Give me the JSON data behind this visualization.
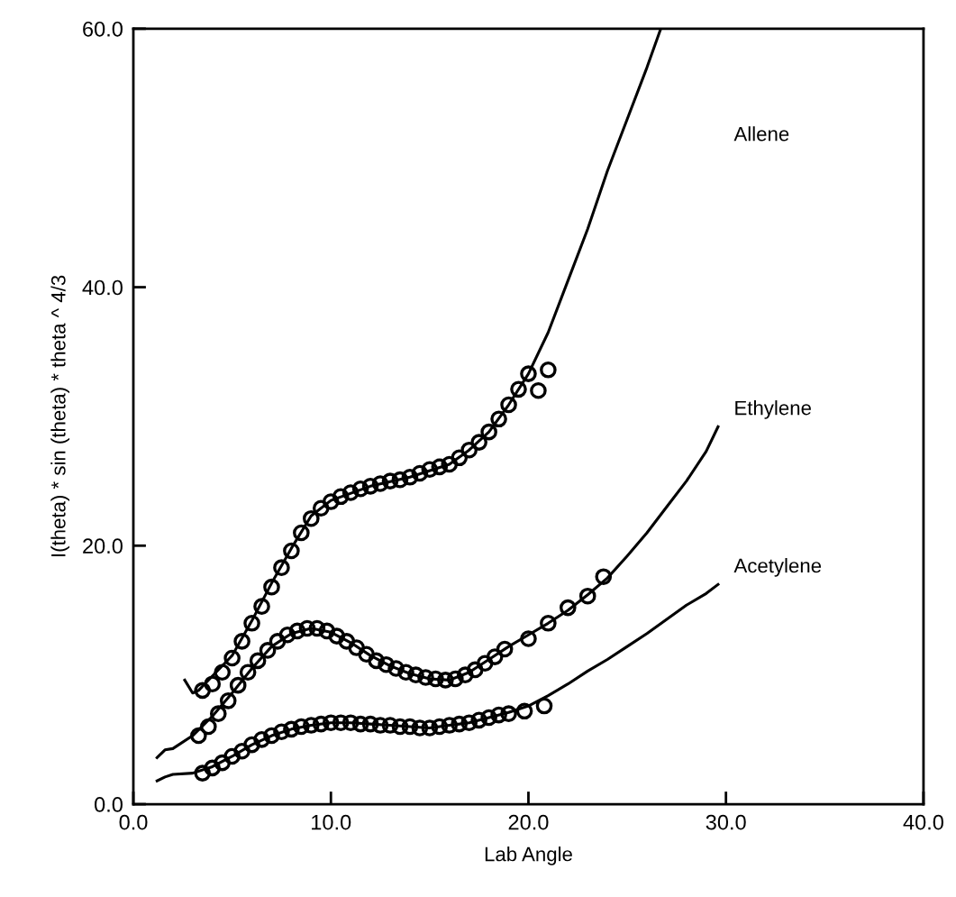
{
  "chart_data": {
    "type": "line",
    "xlabel": "Lab Angle",
    "ylabel": "I(theta) * sin (theta) * theta ^ 4/3",
    "xlim": [
      0,
      40
    ],
    "ylim": [
      0,
      60
    ],
    "xticks": [
      {
        "value": 0,
        "label": "0.0"
      },
      {
        "value": 10,
        "label": "10.0"
      },
      {
        "value": 20,
        "label": "20.0"
      },
      {
        "value": 30,
        "label": "30.0"
      },
      {
        "value": 40,
        "label": "40.0"
      }
    ],
    "yticks": [
      {
        "value": 0,
        "label": "0.0"
      },
      {
        "value": 20,
        "label": "20.0"
      },
      {
        "value": 40,
        "label": "40.0"
      },
      {
        "value": 60,
        "label": "60.0"
      }
    ],
    "grid": false,
    "legend": false,
    "series": [
      {
        "name": "Allene",
        "color": "#000000",
        "marker": "none",
        "x": [
          2.6,
          3.0,
          3.3,
          5,
          6,
          7,
          8,
          9,
          10,
          12,
          14,
          16,
          17,
          18,
          19,
          20,
          21,
          22,
          23,
          24,
          25,
          26,
          26.7
        ],
        "values": [
          9.6,
          8.6,
          8.8,
          11.5,
          14.2,
          17.1,
          19.8,
          22.3,
          23.5,
          24.6,
          25.3,
          26.3,
          27.4,
          28.8,
          30.9,
          33.3,
          36.5,
          40.5,
          44.5,
          49,
          53,
          57,
          60
        ]
      },
      {
        "name": "Ethylene",
        "color": "#000000",
        "marker": "none",
        "x": [
          1.2,
          1.6,
          2,
          3,
          4,
          5,
          6,
          7,
          8,
          9,
          10,
          11,
          12,
          13,
          14,
          15,
          16,
          17,
          18,
          19,
          20,
          21,
          22,
          23,
          24,
          25,
          26,
          27,
          28,
          29,
          29.6
        ],
        "values": [
          3.6,
          4.2,
          4.3,
          5.3,
          6.8,
          8.6,
          10.5,
          12.2,
          13.2,
          13.6,
          13.3,
          12.5,
          11.5,
          10.7,
          10.1,
          9.7,
          9.6,
          10.2,
          11.2,
          12.2,
          13.1,
          14,
          15,
          16.2,
          17.5,
          19.2,
          21,
          23,
          25,
          27.3,
          29.2
        ]
      },
      {
        "name": "Acetylene",
        "color": "#000000",
        "marker": "none",
        "x": [
          1.2,
          1.6,
          2,
          3,
          4,
          5,
          6,
          7,
          8,
          9,
          10,
          11,
          12,
          13,
          14,
          15,
          16,
          17,
          18,
          19,
          20,
          21,
          22,
          23,
          24,
          25,
          26,
          27,
          28,
          29,
          29.6
        ],
        "values": [
          1.8,
          2.1,
          2.3,
          2.4,
          2.9,
          3.7,
          4.6,
          5.3,
          5.8,
          6.1,
          6.3,
          6.3,
          6.2,
          6.1,
          6.0,
          5.9,
          6.1,
          6.3,
          6.7,
          7.1,
          7.6,
          8.4,
          9.3,
          10.3,
          11.2,
          12.2,
          13.2,
          14.3,
          15.4,
          16.3,
          17
        ]
      },
      {
        "type": "scatter",
        "color": "#000000",
        "marker": "circle",
        "x": [
          3.5,
          4,
          4.5,
          5,
          5.5,
          6,
          6.5,
          7,
          7.5,
          8,
          8.5,
          9,
          9.5,
          10,
          10.5,
          11,
          11.5,
          12,
          12.5,
          13,
          13.5,
          14,
          14.5,
          15,
          15.5,
          16,
          16.5,
          17,
          17.5,
          18,
          18.5,
          19,
          19.5,
          20,
          20.5,
          21
        ],
        "values": [
          8.8,
          9.3,
          10.2,
          11.3,
          12.6,
          14,
          15.3,
          16.8,
          18.3,
          19.6,
          21,
          22.1,
          22.9,
          23.4,
          23.8,
          24.1,
          24.4,
          24.6,
          24.8,
          25,
          25.1,
          25.3,
          25.6,
          25.9,
          26.1,
          26.3,
          26.8,
          27.4,
          28,
          28.8,
          29.8,
          30.9,
          32.1,
          33.3,
          32,
          33.6
        ]
      },
      {
        "type": "scatter",
        "color": "#000000",
        "marker": "circle",
        "x": [
          3.3,
          3.8,
          4.3,
          4.8,
          5.3,
          5.8,
          6.3,
          6.8,
          7.3,
          7.8,
          8.3,
          8.8,
          9.3,
          9.8,
          10.3,
          10.8,
          11.3,
          11.8,
          12.3,
          12.8,
          13.3,
          13.8,
          14.3,
          14.8,
          15.3,
          15.8,
          16.3,
          16.8,
          17.3,
          17.8,
          18.3,
          18.8,
          20,
          21,
          22,
          23,
          23.8
        ],
        "values": [
          5.3,
          6,
          7,
          8,
          9.2,
          10.2,
          11.1,
          11.9,
          12.6,
          13.1,
          13.4,
          13.6,
          13.6,
          13.4,
          13,
          12.6,
          12.1,
          11.6,
          11.1,
          10.8,
          10.5,
          10.2,
          10,
          9.8,
          9.7,
          9.6,
          9.7,
          10,
          10.4,
          10.9,
          11.4,
          12,
          12.8,
          14,
          15.2,
          16.1,
          17.6
        ]
      },
      {
        "type": "scatter",
        "color": "#000000",
        "marker": "circle",
        "x": [
          3.5,
          4,
          4.5,
          5,
          5.5,
          6,
          6.5,
          7,
          7.5,
          8,
          8.5,
          9,
          9.5,
          10,
          10.5,
          11,
          11.5,
          12,
          12.5,
          13,
          13.5,
          14,
          14.5,
          15,
          15.5,
          16,
          16.5,
          17,
          17.5,
          18,
          18.5,
          19,
          19.8,
          20.8
        ],
        "values": [
          2.4,
          2.8,
          3.2,
          3.7,
          4.1,
          4.6,
          5,
          5.3,
          5.6,
          5.8,
          6,
          6.1,
          6.2,
          6.3,
          6.3,
          6.3,
          6.2,
          6.2,
          6.1,
          6.1,
          6,
          6,
          5.9,
          5.9,
          6,
          6.1,
          6.2,
          6.3,
          6.5,
          6.7,
          6.9,
          7,
          7.2,
          7.6
        ]
      }
    ]
  }
}
